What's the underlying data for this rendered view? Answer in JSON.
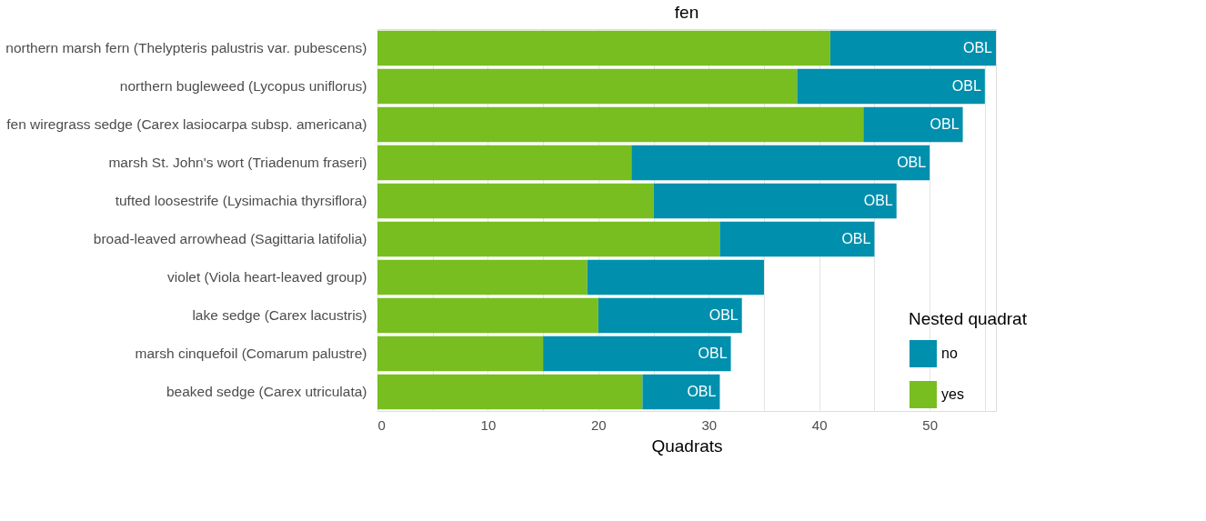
{
  "chart_data": {
    "type": "bar",
    "orientation": "horizontal",
    "stacked": true,
    "title": "fen",
    "xlabel": "Quadrats",
    "categories": [
      "northern marsh fern (Thelypteris palustris var. pubescens)",
      "northern bugleweed (Lycopus uniflorus)",
      "fen wiregrass sedge (Carex lasiocarpa subsp. americana)",
      "marsh St. John's wort (Triadenum fraseri)",
      "tufted loosestrife (Lysimachia thyrsiflora)",
      "broad-leaved arrowhead (Sagittaria latifolia)",
      "violet (Viola heart-leaved group)",
      "lake sedge (Carex lacustris)",
      "marsh cinquefoil (Comarum palustre)",
      "beaked sedge (Carex utriculata)"
    ],
    "series": [
      {
        "name": "yes",
        "color": "#78be20",
        "values": [
          41,
          38,
          44,
          23,
          25,
          31,
          19,
          20,
          15,
          24
        ]
      },
      {
        "name": "no",
        "color": "#008fad",
        "values": [
          15,
          17,
          9,
          27,
          22,
          14,
          16,
          13,
          17,
          7
        ]
      }
    ],
    "legend_title": "Nested quadrat",
    "legend": "bottom right",
    "grid": "x",
    "xlim": [
      0,
      56
    ],
    "xticks": [
      0,
      {
        "value": 5,
        "label": null
      },
      10,
      {
        "value": 15,
        "label": null
      },
      20,
      {
        "value": 25,
        "label": null
      },
      30,
      {
        "value": 35,
        "label": null
      },
      40,
      {
        "value": 45,
        "label": null
      },
      50,
      {
        "value": 55,
        "label": null
      }
    ],
    "annotations": [
      {
        "text": "OBL",
        "x": 56,
        "y": "northern marsh fern (Thelypteris palustris var. pubescens)"
      },
      {
        "text": "OBL",
        "x": 55,
        "y": "northern bugleweed (Lycopus uniflorus)"
      },
      {
        "text": "OBL",
        "x": 53,
        "y": "fen wiregrass sedge (Carex lasiocarpa subsp. americana)"
      },
      {
        "text": "OBL",
        "x": 50,
        "y": "marsh St. John's wort (Triadenum fraseri)"
      },
      {
        "text": "OBL",
        "x": 47,
        "y": "tufted loosestrife (Lysimachia thyrsiflora)"
      },
      {
        "text": "OBL",
        "x": 45,
        "y": "broad-leaved arrowhead (Sagittaria latifolia)"
      },
      {
        "text": "OBL",
        "x": 33,
        "y": "lake sedge (Carex lacustris)"
      },
      {
        "text": "OBL",
        "x": 32,
        "y": "marsh cinquefoil (Comarum palustre)"
      },
      {
        "text": "OBL",
        "x": 31,
        "y": "beaked sedge (Carex utriculata)"
      }
    ]
  }
}
